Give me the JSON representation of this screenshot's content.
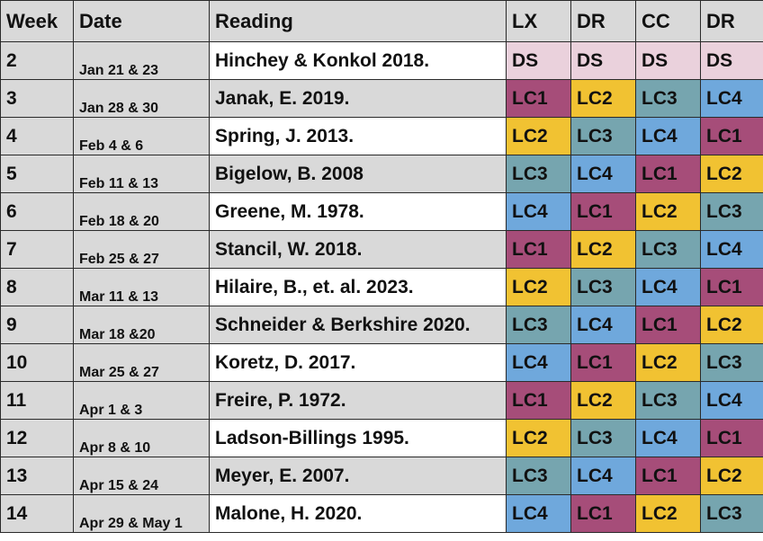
{
  "header": {
    "week": "Week",
    "date": "Date",
    "reading": "Reading",
    "groups": [
      "LX",
      "DR",
      "CC",
      "DR"
    ]
  },
  "rows": [
    {
      "week": "2",
      "date": "Jan 21 & 23",
      "reading": "Hinchey & Konkol 2018.",
      "groups": [
        "DS",
        "DS",
        "DS",
        "DS"
      ]
    },
    {
      "week": "3",
      "date": "Jan 28 & 30",
      "reading": "Janak, E. 2019.",
      "groups": [
        "LC1",
        "LC2",
        "LC3",
        "LC4"
      ]
    },
    {
      "week": "4",
      "date": "Feb 4 & 6",
      "reading": "Spring, J. 2013.",
      "groups": [
        "LC2",
        "LC3",
        "LC4",
        "LC1"
      ]
    },
    {
      "week": "5",
      "date": "Feb 11 & 13",
      "reading": "Bigelow, B. 2008",
      "groups": [
        "LC3",
        "LC4",
        "LC1",
        "LC2"
      ]
    },
    {
      "week": "6",
      "date": "Feb 18 & 20",
      "reading": "Greene, M. 1978.",
      "groups": [
        "LC4",
        "LC1",
        "LC2",
        "LC3"
      ]
    },
    {
      "week": "7",
      "date": "Feb 25 & 27",
      "reading": "Stancil, W. 2018.",
      "groups": [
        "LC1",
        "LC2",
        "LC3",
        "LC4"
      ]
    },
    {
      "week": "8",
      "date": "Mar 11 & 13",
      "reading": "Hilaire, B., et. al. 2023.",
      "groups": [
        "LC2",
        "LC3",
        "LC4",
        "LC1"
      ]
    },
    {
      "week": "9",
      "date": "Mar 18 &20",
      "reading": "Schneider & Berkshire 2020.",
      "groups": [
        "LC3",
        "LC4",
        "LC1",
        "LC2"
      ]
    },
    {
      "week": "10",
      "date": "Mar 25 & 27",
      "reading": "Koretz, D. 2017.",
      "groups": [
        "LC4",
        "LC1",
        "LC2",
        "LC3"
      ]
    },
    {
      "week": "11",
      "date": "Apr 1 & 3",
      "reading": "Freire, P. 1972.",
      "groups": [
        "LC1",
        "LC2",
        "LC3",
        "LC4"
      ]
    },
    {
      "week": "12",
      "date": "Apr 8 & 10",
      "reading": "Ladson-Billings 1995.",
      "groups": [
        "LC2",
        "LC3",
        "LC4",
        "LC1"
      ]
    },
    {
      "week": "13",
      "date": "Apr 15 & 24",
      "reading": "Meyer, E. 2007.",
      "groups": [
        "LC3",
        "LC4",
        "LC1",
        "LC2"
      ]
    },
    {
      "week": "14",
      "date": "Apr 29 & May 1",
      "reading": "Malone, H. 2020.",
      "groups": [
        "LC4",
        "LC1",
        "LC2",
        "LC3"
      ]
    }
  ],
  "colors": {
    "DS": "#ead1dc",
    "LC1": "#a64d79",
    "LC2": "#f1c232",
    "LC3": "#76a5af",
    "LC4": "#6fa8dc",
    "header_bg": "#d9d9d9"
  }
}
